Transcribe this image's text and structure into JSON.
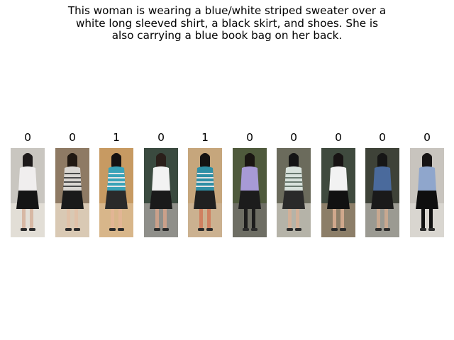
{
  "caption": {
    "lines": [
      "This woman is wearing a blue/white striped sweater over a",
      "white long sleeved shirt, a black skirt, and shoes. She is",
      "also carrying a blue book bag on her back."
    ]
  },
  "gallery": [
    {
      "label": "0",
      "bg": "#c9c6c0",
      "floor": "#e2ded6",
      "hair": "#1d1a1a",
      "top": "#f0eeee",
      "bottom": "#151515",
      "legs": "#d7b8a4",
      "accent": "#3a3a3a"
    },
    {
      "label": "0",
      "bg": "#8e7a64",
      "floor": "#d9c9b4",
      "hair": "#201812",
      "top": "#d9d6d2",
      "bottom": "#1a1a1a",
      "legs": "#e0c1a8",
      "accent": "#4a4a4a"
    },
    {
      "label": "1",
      "bg": "#c79a62",
      "floor": "#d8b68a",
      "hair": "#151212",
      "top": "#3aa3b8",
      "bottom": "#2a2a2a",
      "legs": "#e2b594",
      "accent": "#e6e6e6"
    },
    {
      "label": "0",
      "bg": "#3a4a3f",
      "floor": "#8f8f8a",
      "hair": "#2a1f1a",
      "top": "#f2f2f2",
      "bottom": "#1a1a1a",
      "legs": "#caa08a",
      "accent": "#b04050"
    },
    {
      "label": "1",
      "bg": "#c6a67c",
      "floor": "#cbb190",
      "hair": "#141212",
      "top": "#2f8fa5",
      "bottom": "#202020",
      "legs": "#d08060",
      "accent": "#e4e4e4"
    },
    {
      "label": "0",
      "bg": "#4f5a3c",
      "floor": "#6e6e64",
      "hair": "#1a1612",
      "top": "#a79ad6",
      "bottom": "#1c1c1c",
      "legs": "#1c1c1c",
      "accent": "#3a3a3a"
    },
    {
      "label": "0",
      "bg": "#6b6b5c",
      "floor": "#b5b3a8",
      "hair": "#151515",
      "top": "#d8e2dc",
      "bottom": "#2a2a2a",
      "legs": "#d2b098",
      "accent": "#6a7a70"
    },
    {
      "label": "0",
      "bg": "#3f4a3e",
      "floor": "#8c7e68",
      "hair": "#171313",
      "top": "#f2f2f2",
      "bottom": "#111111",
      "legs": "#d0a88c",
      "accent": "#222222"
    },
    {
      "label": "0",
      "bg": "#3e4238",
      "floor": "#9b9a92",
      "hair": "#161616",
      "top": "#4a6a9c",
      "bottom": "#1a1a1a",
      "legs": "#c8a890",
      "accent": "#444444"
    },
    {
      "label": "0",
      "bg": "#c8c4be",
      "floor": "#d9d6d0",
      "hair": "#171414",
      "top": "#8fa6cc",
      "bottom": "#0f0f0f",
      "legs": "#111111",
      "accent": "#333333"
    }
  ]
}
